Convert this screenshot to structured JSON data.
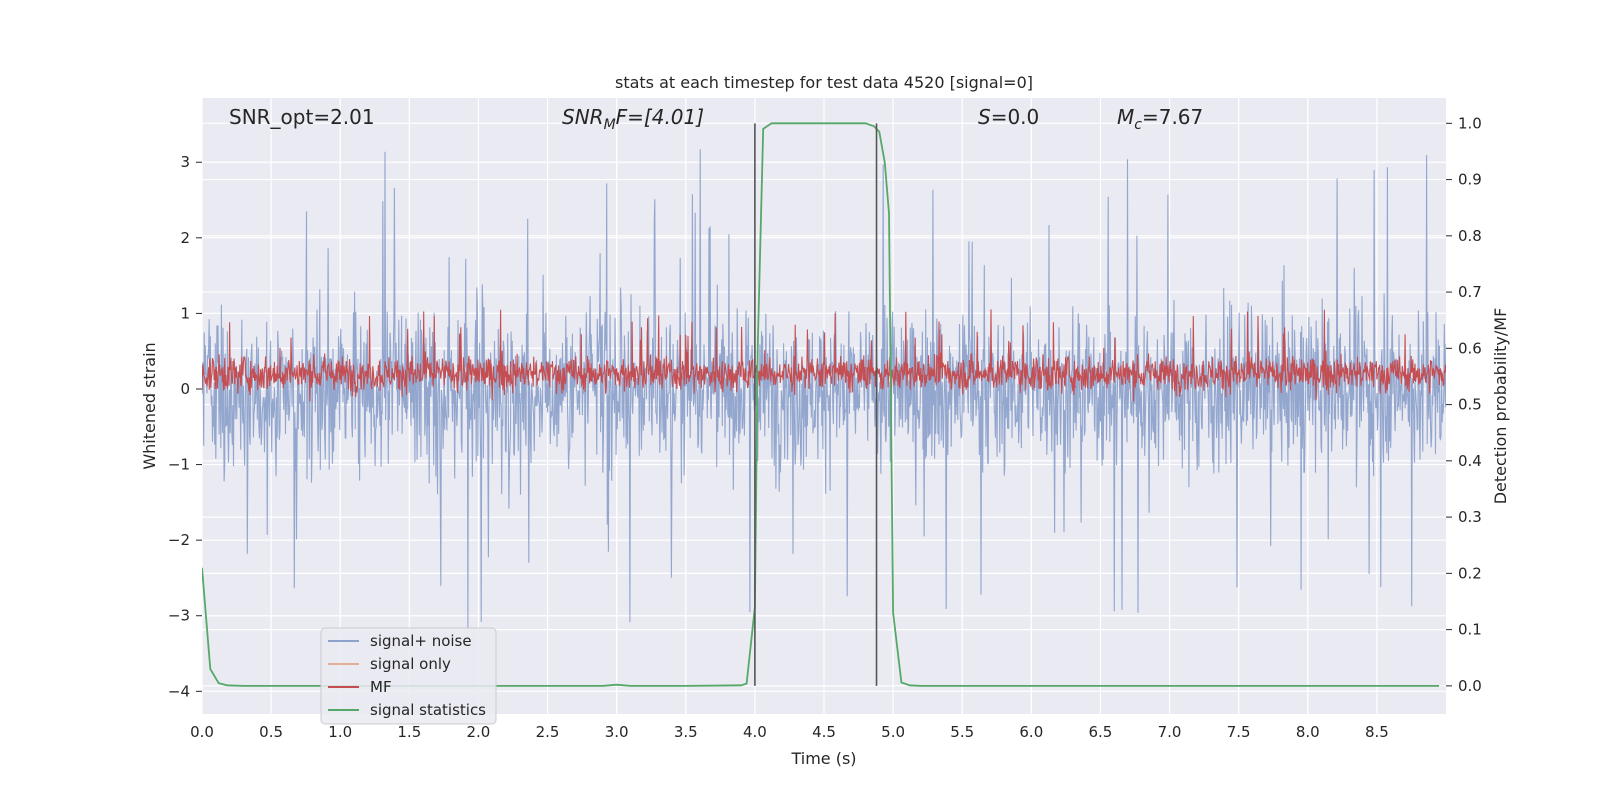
{
  "chart_data": {
    "type": "line",
    "title": "stats at each timestep for test data 4520 [signal=0]",
    "xlabel": "Time (s)",
    "ylabel_left": "Whitened strain",
    "ylabel_right": "Detection probability/MF",
    "xlim": [
      0,
      9.0
    ],
    "ylim_left": [
      -4.3,
      3.85
    ],
    "ylim_right": [
      -0.05,
      1.045
    ],
    "x_ticks": [
      0.0,
      0.5,
      1.0,
      1.5,
      2.0,
      2.5,
      3.0,
      3.5,
      4.0,
      4.5,
      5.0,
      5.5,
      6.0,
      6.5,
      7.0,
      7.5,
      8.0,
      8.5
    ],
    "x_tick_labels": [
      "0.0",
      "0.5",
      "1.0",
      "1.5",
      "2.0",
      "2.5",
      "3.0",
      "3.5",
      "4.0",
      "4.5",
      "5.0",
      "5.5",
      "6.0",
      "6.5",
      "7.0",
      "7.5",
      "8.0",
      "8.5"
    ],
    "y_left_ticks": [
      -4,
      -3,
      -2,
      -1,
      0,
      1,
      2,
      3
    ],
    "y_left_tick_labels": [
      "−4",
      "−3",
      "−2",
      "−1",
      "0",
      "1",
      "2",
      "3"
    ],
    "y_right_ticks": [
      0.0,
      0.1,
      0.2,
      0.3,
      0.4,
      0.5,
      0.6,
      0.7,
      0.8,
      0.9,
      1.0
    ],
    "y_right_tick_labels": [
      "0.0",
      "0.1",
      "0.2",
      "0.3",
      "0.4",
      "0.5",
      "0.6",
      "0.7",
      "0.8",
      "0.9",
      "1.0"
    ],
    "grid": true,
    "legend_position": "lower-left",
    "annotations": {
      "snr_opt": "SNR_opt=2.01",
      "snr_mf_main": "SNR",
      "snr_mf_sub": "M",
      "snr_mf_rest": "F=[4.01]",
      "s_main": "S",
      "s_rest": "=0.0",
      "mc_main": "M",
      "mc_sub": "c",
      "mc_rest": "=7.67"
    },
    "vertical_lines_x": [
      4.0,
      4.88
    ],
    "series": [
      {
        "name": "signal+ noise",
        "color": "#8da2cb",
        "axis": "left",
        "duration": 9.0,
        "sample_step": 0.004,
        "band_low": -1.3,
        "band_high": 1.3,
        "max_value": 3.3,
        "min_value": -4.0
      },
      {
        "name": "signal only",
        "color": "#e5ae99",
        "axis": "left",
        "values": []
      },
      {
        "name": "MF",
        "color": "#c44e52",
        "axis": "right",
        "duration": 9.0,
        "sample_step": 0.004,
        "band_low": 0.505,
        "band_high": 0.645,
        "max_value": 0.675,
        "min_value": 0.5
      },
      {
        "name": "signal statistics",
        "color": "#55a868",
        "axis": "right",
        "x": [
          0.0,
          0.06,
          0.12,
          0.18,
          0.3,
          0.5,
          1.0,
          1.5,
          2.0,
          2.5,
          2.9,
          3.0,
          3.1,
          3.5,
          3.9,
          3.94,
          4.0,
          4.02,
          4.06,
          4.12,
          4.2,
          4.5,
          4.8,
          4.86,
          4.9,
          4.94,
          4.97,
          5.0,
          5.06,
          5.12,
          5.2,
          6.0,
          7.0,
          8.0,
          8.95
        ],
        "y": [
          0.21,
          0.03,
          0.005,
          0.001,
          0.0,
          0.0,
          0.0,
          0.0,
          0.0,
          0.0,
          0.0,
          0.002,
          0.0,
          0.0,
          0.001,
          0.004,
          0.14,
          0.6,
          0.99,
          1.0,
          1.0,
          1.0,
          1.0,
          0.995,
          0.985,
          0.93,
          0.84,
          0.13,
          0.006,
          0.001,
          0.0,
          0.0,
          0.0,
          0.0,
          0.0
        ]
      }
    ]
  }
}
